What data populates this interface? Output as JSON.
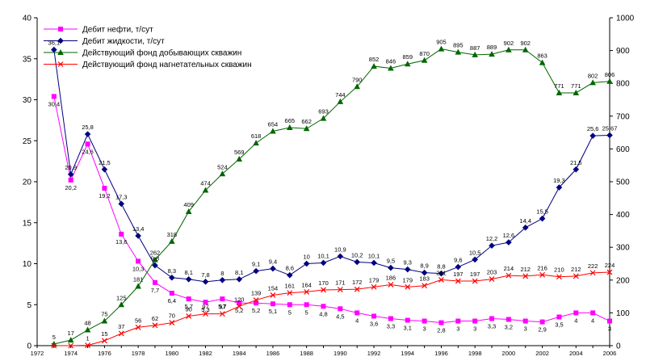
{
  "chart_data": {
    "type": "line",
    "x": [
      1973,
      1974,
      1975,
      1976,
      1977,
      1978,
      1979,
      1980,
      1981,
      1982,
      1983,
      1984,
      1985,
      1986,
      1987,
      1988,
      1989,
      1990,
      1991,
      1992,
      1993,
      1994,
      1995,
      1996,
      1997,
      1998,
      1999,
      2000,
      2001,
      2002,
      2003,
      2004,
      2005,
      2006
    ],
    "x_ticks": [
      "1972",
      "1974",
      "1976",
      "1978",
      "1980",
      "1982",
      "1984",
      "1986",
      "1988",
      "1990",
      "1992",
      "1994",
      "1996",
      "1998",
      "2000",
      "2002",
      "2004",
      "2006"
    ],
    "xlim": [
      1972,
      2006
    ],
    "y_left_ticks": [
      "0",
      "5",
      "10",
      "15",
      "20",
      "25",
      "30",
      "35",
      "40"
    ],
    "y_left_lim": [
      0,
      40
    ],
    "y_right_ticks": [
      "0",
      "100",
      "200",
      "300",
      "400",
      "500",
      "600",
      "700",
      "800",
      "900",
      "1000"
    ],
    "y_right_lim": [
      0,
      1000
    ],
    "grid": false,
    "legend_position": "top-left",
    "series": [
      {
        "name": "Дебит нефти, т/сут",
        "axis": "left",
        "color": "#ff00ff",
        "marker": "square",
        "values": [
          30.4,
          20.2,
          24.6,
          19.2,
          13.6,
          10.3,
          7.7,
          6.4,
          5.7,
          5.3,
          5.7,
          5.2,
          5.2,
          5.1,
          5,
          5,
          4.8,
          4.5,
          4,
          3.6,
          3.3,
          3.1,
          3,
          2.8,
          3,
          3,
          3.3,
          3.2,
          3,
          2.9,
          3.5,
          4,
          4,
          3
        ],
        "labels": [
          "30,4",
          "20,2",
          "24,6",
          "19,2",
          "13,6",
          "10,3",
          "7,7",
          "6,4",
          "5,7",
          "5,3",
          "5,7",
          "5,2",
          "5,2",
          "5,1",
          "5",
          "5",
          "4,8",
          "4,5",
          "4",
          "3,6",
          "3,3",
          "3,1",
          "3",
          "2,8",
          "3",
          "3",
          "3,3",
          "3,2",
          "3",
          "2,9",
          "3,5",
          "4",
          "4",
          "3"
        ]
      },
      {
        "name": "Дебит жидкости, т/сут",
        "axis": "left",
        "color": "#000080",
        "marker": "diamond",
        "values": [
          36.1,
          20.9,
          25.8,
          21.5,
          17.3,
          13.4,
          9.8,
          8.3,
          8.1,
          7.8,
          8,
          8.1,
          9.1,
          9.4,
          8.6,
          10,
          10.1,
          10.9,
          10.2,
          10.1,
          9.5,
          9.3,
          8.9,
          8.8,
          9.6,
          10.5,
          12.2,
          12.6,
          14.4,
          15.5,
          19.3,
          21.5,
          25.6,
          25.67
        ],
        "labels": [
          "36,1",
          "20,9",
          "25,8",
          "21,5",
          "17,3",
          "13,4",
          "9,8",
          "8,3",
          "8,1",
          "7,8",
          "8",
          "8,1",
          "9,1",
          "9,4",
          "8,6",
          "10",
          "10,1",
          "10,9",
          "10,2",
          "10,1",
          "9,5",
          "9,3",
          "8,9",
          "8,8",
          "9,6",
          "10,5",
          "12,2",
          "12,6",
          "14,4",
          "15,5",
          "19,3",
          "21,5",
          "25,6",
          "25,67"
        ]
      },
      {
        "name": "Действующий фонд добывающих скважин",
        "axis": "right",
        "color": "#006600",
        "marker": "triangle",
        "values": [
          5,
          17,
          48,
          75,
          125,
          181,
          262,
          318,
          409,
          474,
          524,
          569,
          618,
          654,
          665,
          662,
          693,
          744,
          790,
          852,
          846,
          859,
          870,
          905,
          895,
          887,
          889,
          902,
          902,
          863,
          771,
          771,
          802,
          806
        ],
        "labels": [
          "5",
          "17",
          "48",
          "75",
          "125",
          "181",
          "262",
          "318",
          "409",
          "474",
          "524",
          "569",
          "618",
          "654",
          "665",
          "662",
          "693",
          "744",
          "790",
          "852",
          "846",
          "859",
          "870",
          "905",
          "895",
          "887",
          "889",
          "902",
          "902",
          "863",
          "771",
          "771",
          "802",
          "806"
        ]
      },
      {
        "name": "Действующий фонд нагнетательных скважин",
        "axis": "right",
        "color": "#ff0000",
        "marker": "x",
        "values": [
          0,
          0,
          1,
          15,
          37,
          56,
          62,
          70,
          90,
          97,
          97,
          120,
          139,
          154,
          161,
          164,
          170,
          171,
          172,
          179,
          186,
          179,
          183,
          201,
          197,
          197,
          203,
          214,
          212,
          216,
          210,
          212,
          222,
          224
        ],
        "labels": [
          "",
          "",
          "1",
          "15",
          "37",
          "56",
          "62",
          "70",
          "90",
          "97",
          "97",
          "120",
          "139",
          "154",
          "161",
          "164",
          "170",
          "171",
          "172",
          "179",
          "186",
          "179",
          "183",
          "201",
          "197",
          "197",
          "203",
          "214",
          "212",
          "216",
          "210",
          "212",
          "222",
          "224"
        ]
      }
    ]
  }
}
